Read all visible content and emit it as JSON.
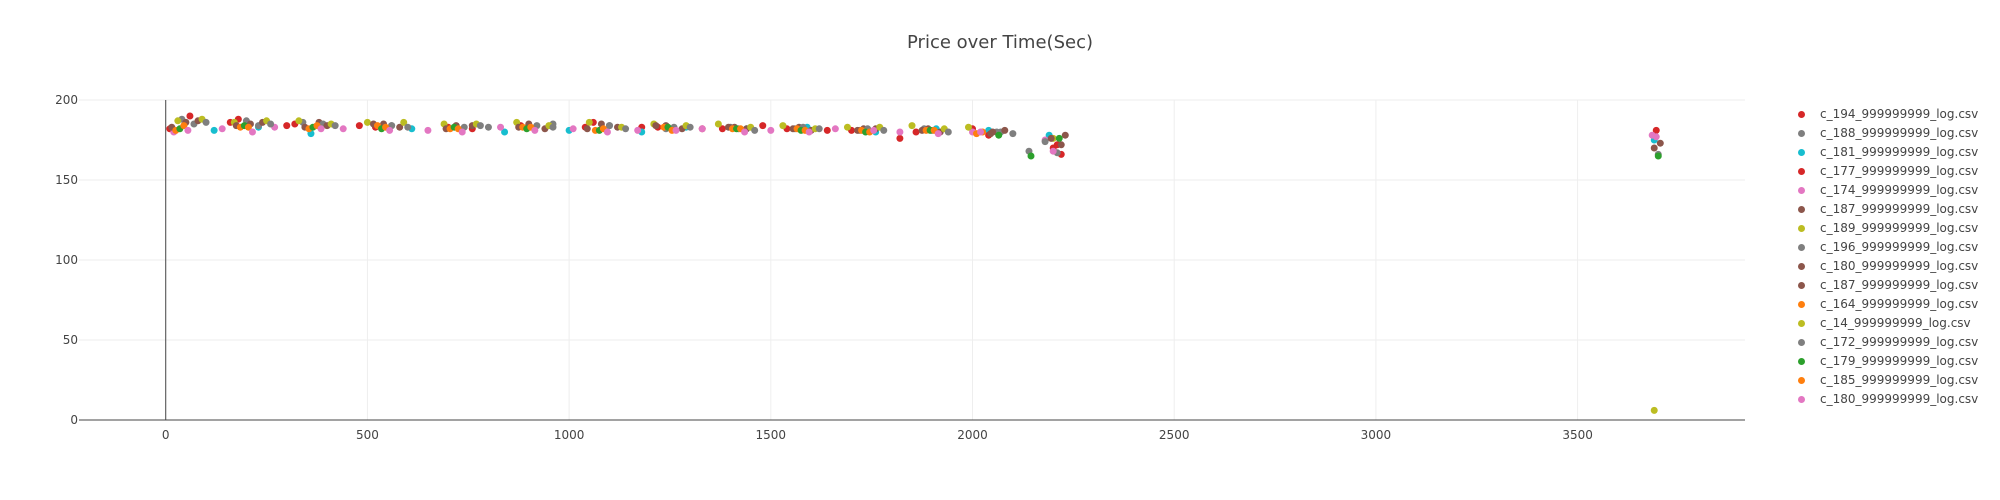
{
  "chart_data": {
    "type": "scatter",
    "title": "Price over Time(Sec)",
    "xlabel": "",
    "ylabel": "",
    "xlim": [
      -215,
      3915
    ],
    "ylim": [
      0,
      200
    ],
    "xticks": [
      0,
      500,
      1000,
      1500,
      2000,
      2500,
      3000,
      3500
    ],
    "yticks": [
      0,
      50,
      100,
      150,
      200
    ],
    "grid": true,
    "legend_position": "right",
    "series": [
      {
        "name": "c_194_999999999_log.csv",
        "color": "#d62728",
        "x": [
          10,
          160,
          300,
          520,
          760,
          900,
          1040,
          1180,
          1330,
          1480,
          1640,
          1820,
          2000,
          2200,
          2220
        ],
        "y": [
          182,
          186,
          184,
          183,
          182,
          184,
          183,
          183,
          182,
          184,
          181,
          176,
          182,
          170,
          166
        ]
      },
      {
        "name": "c_188_999999999_log.csv",
        "color": "#7f7f7f",
        "x": [
          40,
          200,
          340,
          560,
          800,
          960,
          1100,
          1240,
          1400,
          1560,
          1720,
          1880,
          2060,
          2140
        ],
        "y": [
          188,
          187,
          186,
          184,
          183,
          185,
          184,
          182,
          183,
          182,
          181,
          182,
          180,
          168
        ]
      },
      {
        "name": "c_181_999999999_log.csv",
        "color": "#17becf",
        "x": [
          120,
          230,
          360,
          610,
          840,
          1000,
          1180,
          1290,
          1440,
          1590,
          1760,
          1910,
          2040,
          2190,
          3690
        ],
        "y": [
          181,
          183,
          179,
          182,
          180,
          181,
          180,
          183,
          182,
          183,
          180,
          182,
          181,
          178,
          175
        ]
      },
      {
        "name": "c_177_999999999_log.csv",
        "color": "#d62728",
        "x": [
          60,
          180,
          320,
          480,
          700,
          880,
          1060,
          1220,
          1380,
          1540,
          1700,
          1860,
          2040,
          2210,
          3695
        ],
        "y": [
          190,
          188,
          185,
          184,
          183,
          184,
          186,
          183,
          182,
          182,
          181,
          180,
          178,
          172,
          181
        ]
      },
      {
        "name": "c_174_999999999_log.csv",
        "color": "#e377c2",
        "x": [
          20,
          140,
          270,
          440,
          650,
          830,
          1010,
          1170,
          1330,
          1500,
          1660,
          1820,
          2000,
          2180,
          3685
        ],
        "y": [
          180,
          182,
          183,
          182,
          181,
          183,
          182,
          181,
          182,
          181,
          182,
          180,
          180,
          175,
          178
        ]
      },
      {
        "name": "c_187_999999999_log.csv",
        "color": "#8c564b",
        "x": [
          50,
          210,
          380,
          540,
          720,
          900,
          1080,
          1240,
          1410,
          1570,
          1730,
          1890,
          2050,
          2230,
          3690
        ],
        "y": [
          186,
          185,
          186,
          185,
          184,
          185,
          185,
          184,
          183,
          183,
          182,
          182,
          180,
          178,
          170
        ]
      },
      {
        "name": "c_189_999999999_log.csv",
        "color": "#bcbd22",
        "x": [
          30,
          170,
          330,
          500,
          690,
          870,
          1050,
          1210,
          1370,
          1530,
          1690,
          1850,
          1990,
          2200,
          3690
        ],
        "y": [
          187,
          186,
          187,
          186,
          185,
          186,
          186,
          185,
          185,
          184,
          183,
          184,
          183,
          176,
          6
        ]
      },
      {
        "name": "c_196_999999999_log.csv",
        "color": "#7f7f7f",
        "x": [
          70,
          230,
          390,
          560,
          740,
          920,
          1100,
          1260,
          1420,
          1580,
          1740,
          1900,
          2070,
          2180,
          3700
        ],
        "y": [
          185,
          184,
          185,
          184,
          183,
          184,
          184,
          183,
          182,
          183,
          182,
          181,
          180,
          174,
          166
        ]
      },
      {
        "name": "c_180_999999999_log.csv",
        "color": "#8c564b",
        "x": [
          15,
          175,
          345,
          515,
          695,
          875,
          1045,
          1215,
          1395,
          1555,
          1715,
          1875,
          2045,
          2195
        ],
        "y": [
          183,
          184,
          183,
          185,
          182,
          183,
          182,
          184,
          183,
          182,
          181,
          181,
          179,
          176
        ]
      },
      {
        "name": "c_187_999999999_log.csv",
        "color": "#8c564b",
        "x": [
          80,
          240,
          400,
          580,
          760,
          940,
          1120,
          1280,
          1440,
          1600,
          1760,
          1920,
          2080,
          2220,
          3705
        ],
        "y": [
          187,
          186,
          184,
          183,
          184,
          182,
          183,
          182,
          182,
          181,
          182,
          180,
          181,
          172,
          173
        ]
      },
      {
        "name": "c_164_999999999_log.csv",
        "color": "#ff7f0e",
        "x": [
          25,
          185,
          355,
          525,
          705,
          885,
          1065,
          1235,
          1405,
          1565,
          1725,
          1885,
          2025
        ],
        "y": [
          181,
          183,
          182,
          184,
          182,
          183,
          181,
          183,
          182,
          182,
          181,
          181,
          180
        ]
      },
      {
        "name": "c_14_999999999_log.csv",
        "color": "#bcbd22",
        "x": [
          90,
          250,
          410,
          590,
          770,
          950,
          1130,
          1290,
          1450,
          1610,
          1770,
          1930
        ],
        "y": [
          188,
          187,
          185,
          186,
          185,
          184,
          183,
          184,
          183,
          182,
          183,
          182
        ]
      },
      {
        "name": "c_172_999999999_log.csv",
        "color": "#7f7f7f",
        "x": [
          100,
          260,
          420,
          600,
          780,
          960,
          1140,
          1300,
          1460,
          1620,
          1780,
          1940,
          2100,
          2210
        ],
        "y": [
          186,
          185,
          184,
          183,
          184,
          183,
          182,
          183,
          181,
          182,
          181,
          180,
          179,
          167
        ]
      },
      {
        "name": "c_179_999999999_log.csv",
        "color": "#2ca02c",
        "x": [
          35,
          195,
          365,
          535,
          715,
          895,
          1075,
          1245,
          1415,
          1575,
          1735,
          1895,
          2065,
          2145,
          2215,
          3700
        ],
        "y": [
          182,
          184,
          183,
          182,
          183,
          182,
          181,
          183,
          182,
          181,
          180,
          181,
          178,
          165,
          176,
          165
        ]
      },
      {
        "name": "c_185_999999999_log.csv",
        "color": "#ff7f0e",
        "x": [
          45,
          205,
          375,
          545,
          725,
          905,
          1085,
          1255,
          1425,
          1585,
          1745,
          1905,
          2010
        ],
        "y": [
          184,
          183,
          184,
          183,
          182,
          183,
          182,
          181,
          182,
          181,
          180,
          181,
          179
        ]
      },
      {
        "name": "c_180_999999999_log.csv",
        "color": "#e377c2",
        "x": [
          55,
          215,
          385,
          555,
          735,
          915,
          1095,
          1265,
          1435,
          1595,
          1755,
          1915,
          2020,
          2200,
          3695
        ],
        "y": [
          181,
          180,
          182,
          181,
          180,
          181,
          180,
          181,
          180,
          180,
          181,
          179,
          180,
          168,
          177
        ]
      }
    ]
  }
}
